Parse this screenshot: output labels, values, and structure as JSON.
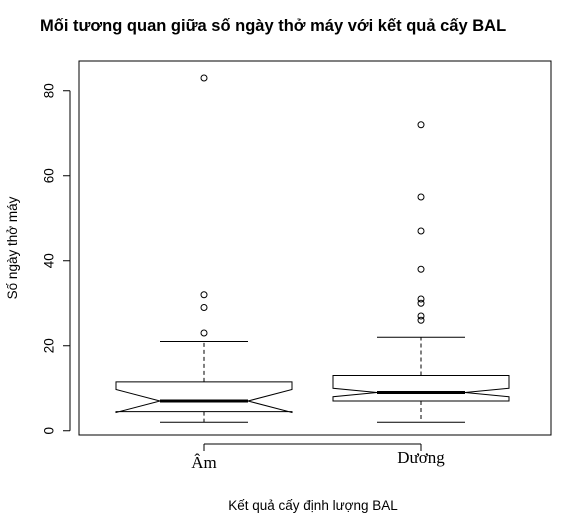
{
  "chart_data": {
    "type": "boxplot",
    "title": "Mối tương quan giữa số ngày thở máy với kết quả cấy BAL",
    "xlabel": "Kết quả cấy định lượng BAL",
    "ylabel": "Số ngày thở máy",
    "notched": true,
    "ylim": [
      -1,
      87
    ],
    "yticks": [
      0,
      20,
      40,
      60,
      80
    ],
    "categories": [
      "Âm",
      "Dương"
    ],
    "boxes": [
      {
        "category": "Âm",
        "whisker_low": 2,
        "q1": 4.5,
        "median": 7,
        "q3": 11.5,
        "whisker_high": 21,
        "notch_low": 4.3,
        "notch_high": 9.7,
        "outliers": [
          23,
          29,
          32,
          83
        ]
      },
      {
        "category": "Dương",
        "whisker_low": 2,
        "q1": 7,
        "median": 9,
        "q3": 13,
        "whisker_high": 22,
        "notch_low": 8,
        "notch_high": 10,
        "outliers": [
          26,
          27,
          30,
          31,
          38,
          47,
          55,
          72
        ]
      }
    ]
  }
}
